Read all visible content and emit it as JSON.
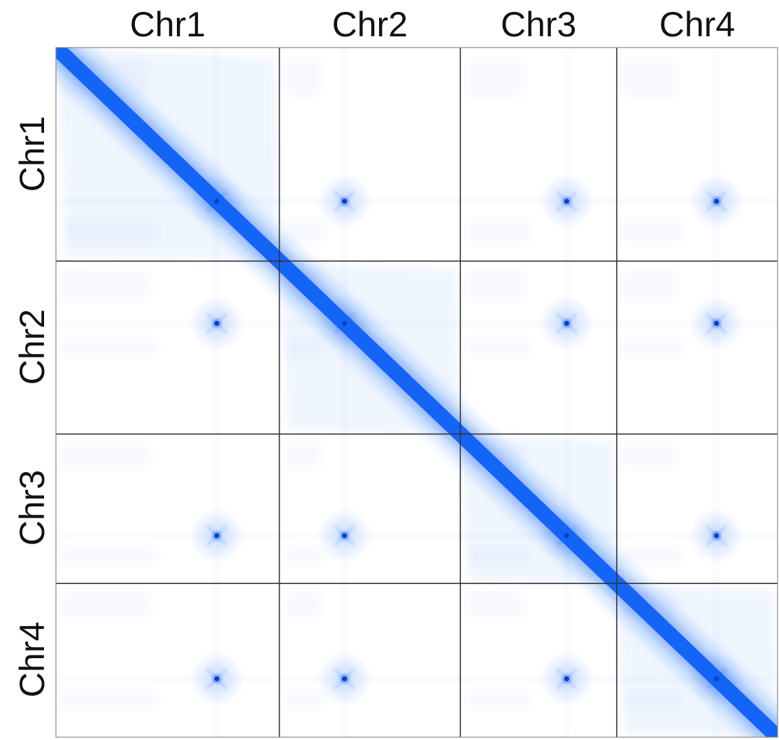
{
  "chart_data": {
    "type": "heatmap",
    "title": "",
    "chromosomes": [
      "Chr1",
      "Chr2",
      "Chr3",
      "Chr4"
    ],
    "column_labels": [
      "Chr1",
      "Chr2",
      "Chr3",
      "Chr4"
    ],
    "row_labels": [
      "Chr1",
      "Chr2",
      "Chr3",
      "Chr4"
    ],
    "relative_sizes": [
      1.0,
      0.81,
      0.7,
      0.72
    ],
    "centromere_fraction": [
      0.72,
      0.36,
      0.68,
      0.62
    ],
    "colorscale": {
      "low": "#ffffff",
      "high": "#1565f5"
    },
    "pattern": "Hi-C contact map: strongest signal along the diagonal; inter-chromosomal centromere-centromere contacts appear as focal spots",
    "grid": true,
    "legend": "none"
  },
  "colors": {
    "background": "#ffffff",
    "signal": "#1565f5",
    "grid_line": "#333333"
  }
}
